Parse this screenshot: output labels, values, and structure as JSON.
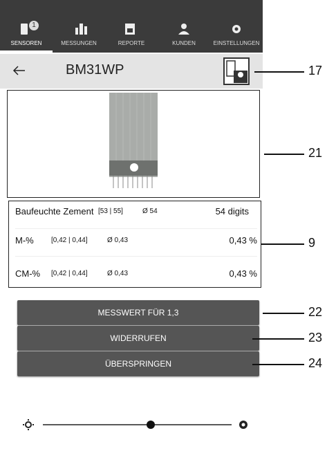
{
  "tabs": [
    {
      "label": "SENSOREN",
      "badge": "1"
    },
    {
      "label": "MESSUNGEN"
    },
    {
      "label": "REPORTE"
    },
    {
      "label": "KUNDEN"
    },
    {
      "label": "EINSTELLUNGEN"
    }
  ],
  "header": {
    "title": "BM31WP"
  },
  "measurements": [
    {
      "name": "Baufeuchte Zement",
      "range": "[53 | 55]",
      "avg": "Ø 54",
      "value": "54 digits"
    },
    {
      "name": "M-%",
      "range": "[0,42 | 0,44]",
      "avg": "Ø 0,43",
      "value": "0,43 %"
    },
    {
      "name": "CM-%",
      "range": "[0,42 | 0,44]",
      "avg": "Ø 0,43",
      "value": "0,43 %"
    }
  ],
  "buttons": [
    "MESSWERT FÜR 1,3",
    "WIDERRUFEN",
    "ÜBERSPRINGEN"
  ],
  "callouts": [
    "17",
    "21",
    "9",
    "22",
    "23",
    "24"
  ]
}
